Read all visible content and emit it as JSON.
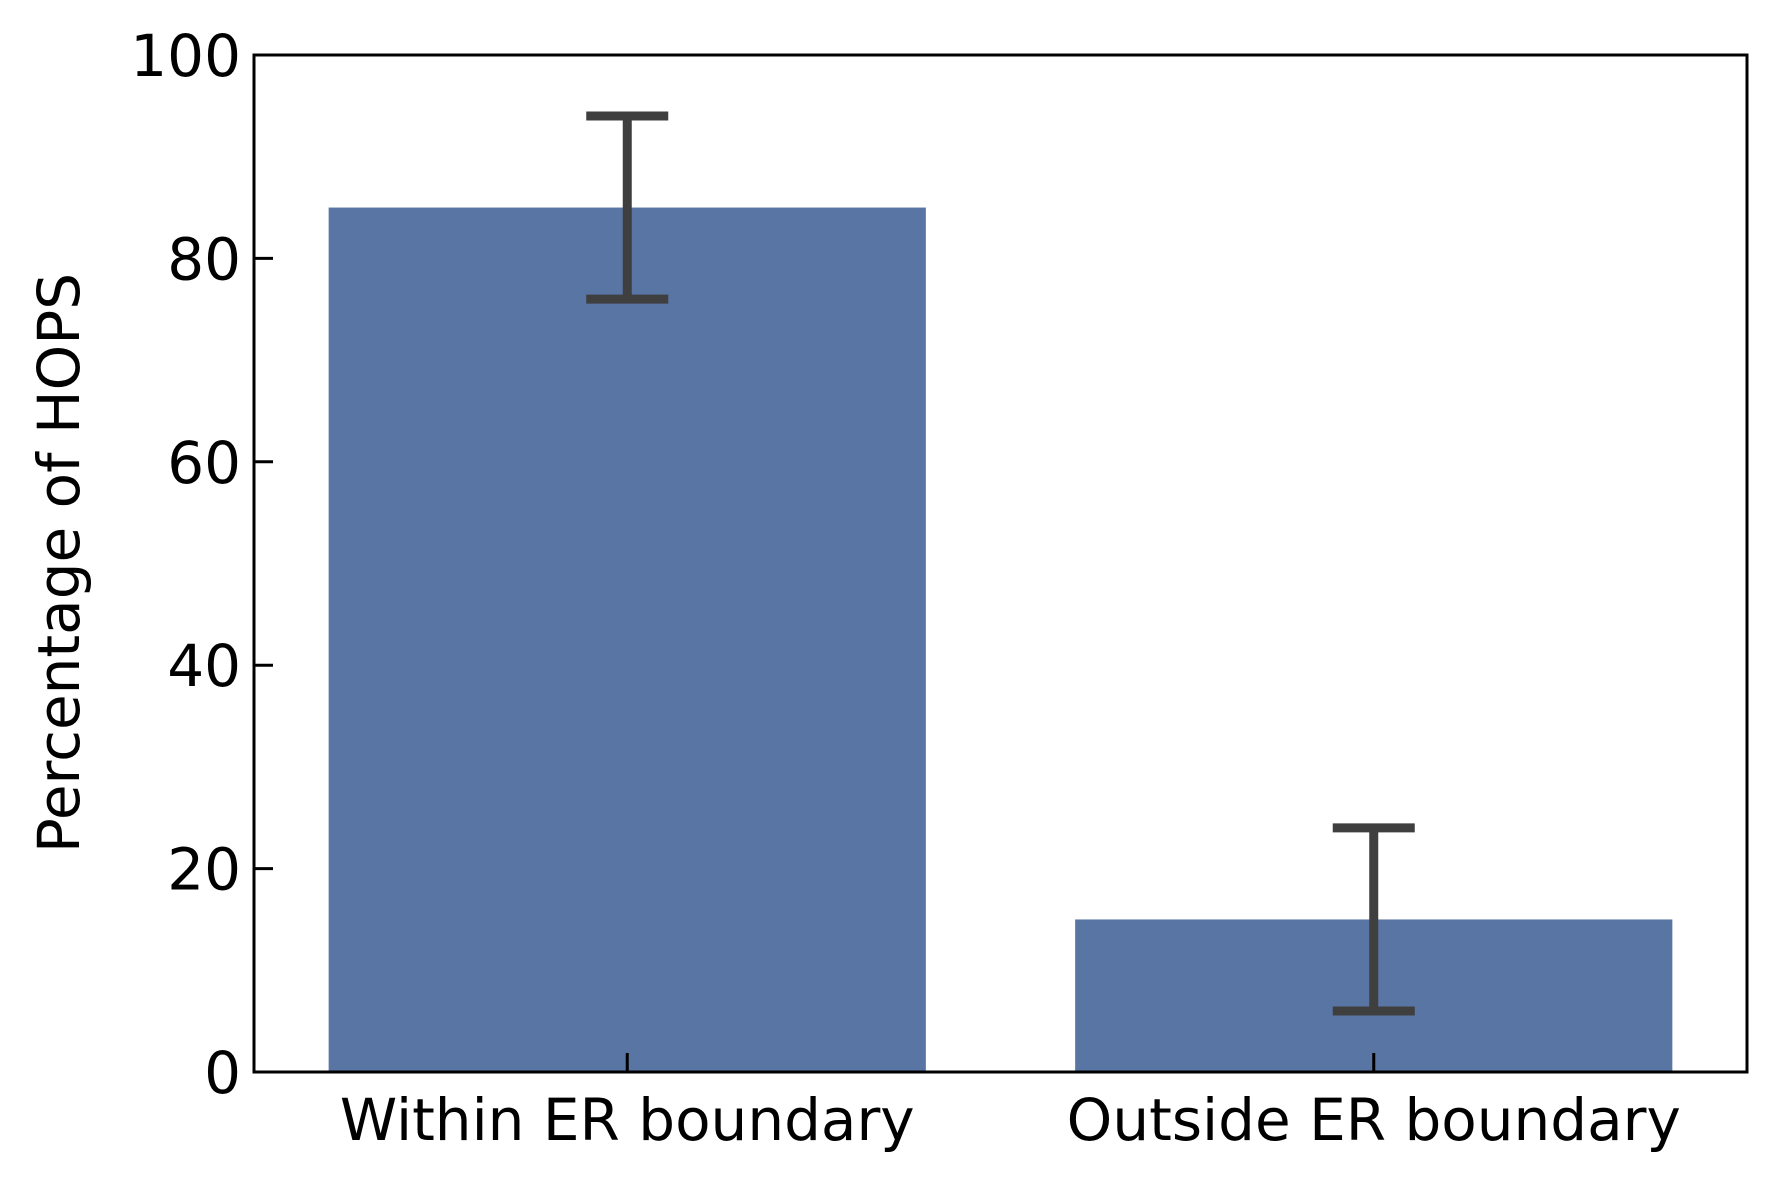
{
  "chart_data": {
    "type": "bar",
    "title": "",
    "xlabel": "",
    "ylabel": "Percentage of HOPS",
    "categories": [
      "Within ER boundary",
      "Outside ER boundary"
    ],
    "values": [
      85,
      15
    ],
    "error_bars": [
      {
        "low": 76,
        "high": 94
      },
      {
        "low": 6,
        "high": 24
      }
    ],
    "ylim": [
      0,
      100
    ],
    "yticks": [
      0,
      20,
      40,
      60,
      80,
      100
    ],
    "ytick_labels": [
      "0",
      "20",
      "40",
      "60",
      "80",
      "100"
    ],
    "grid": false,
    "legend": "none",
    "colors": {
      "bar": "#5975a4",
      "error_bar": "#3f3f3f",
      "axis": "#000000"
    }
  }
}
